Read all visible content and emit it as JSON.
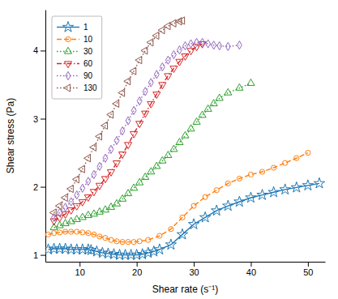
{
  "chart_data": {
    "type": "line",
    "xlabel": "Shear rate (s⁻¹)",
    "ylabel": "Shear stress (Pa)",
    "xlim": [
      4,
      53
    ],
    "ylim": [
      0.9,
      4.6
    ],
    "xticks": [
      10,
      20,
      30,
      40,
      50
    ],
    "yticks": [
      1,
      2,
      3,
      4
    ],
    "grid": false,
    "legend": "upper left",
    "series": [
      {
        "name": "1",
        "line_style": "solid",
        "marker": "star",
        "x": [
          4.5,
          5.5,
          6.5,
          7.5,
          8.5,
          9.5,
          10.5,
          11.5,
          12.0,
          13.0,
          14.0,
          15.0,
          16.0,
          17.0,
          18.0,
          19.0,
          20.0,
          21.0,
          22.0,
          23.0,
          24.0,
          26.0,
          28.0,
          30.0,
          32.0,
          34.0,
          36.0,
          38.0,
          40.0,
          42.0,
          44.0,
          46.0,
          48.0,
          50.0,
          52.0
        ],
        "values": [
          1.08,
          1.09,
          1.09,
          1.09,
          1.08,
          1.08,
          1.08,
          1.08,
          1.07,
          1.05,
          1.03,
          1.02,
          1.01,
          1.0,
          1.0,
          1.0,
          1.0,
          1.01,
          1.03,
          1.05,
          1.08,
          1.15,
          1.3,
          1.45,
          1.55,
          1.65,
          1.72,
          1.78,
          1.84,
          1.88,
          1.92,
          1.96,
          1.99,
          2.02,
          2.05
        ]
      },
      {
        "name": "10",
        "line_style": "dashed",
        "marker": "circle",
        "x": [
          4.5,
          5.5,
          6.5,
          7.5,
          8.5,
          9.5,
          10.5,
          11.5,
          12.5,
          13.5,
          14.5,
          15.5,
          16.5,
          17.5,
          18.5,
          19.5,
          20.5,
          22.0,
          24.0,
          26.0,
          28.0,
          30.0,
          32.0,
          34.0,
          36.0,
          38.0,
          40.0,
          42.0,
          44.0,
          46.0,
          48.0,
          50.0
        ],
        "values": [
          1.3,
          1.32,
          1.33,
          1.34,
          1.34,
          1.34,
          1.33,
          1.32,
          1.3,
          1.27,
          1.25,
          1.22,
          1.2,
          1.19,
          1.19,
          1.19,
          1.2,
          1.22,
          1.28,
          1.38,
          1.55,
          1.72,
          1.85,
          1.95,
          2.05,
          2.12,
          2.18,
          2.22,
          2.28,
          2.35,
          2.42,
          2.5
        ]
      },
      {
        "name": "30",
        "line_style": "dotted",
        "marker": "triangle-up",
        "x": [
          5.5,
          6.5,
          7.5,
          8.5,
          9.5,
          10.5,
          11.5,
          12.5,
          13.5,
          14.5,
          15.5,
          16.5,
          17.5,
          18.5,
          19.5,
          20.5,
          21.5,
          22.5,
          23.5,
          24.5,
          25.5,
          26.5,
          27.5,
          28.5,
          29.5,
          30.5,
          31.5,
          32.5,
          33.5,
          34.5,
          36.0,
          38.0,
          40.0
        ],
        "values": [
          1.4,
          1.43,
          1.46,
          1.49,
          1.52,
          1.55,
          1.58,
          1.6,
          1.63,
          1.66,
          1.7,
          1.75,
          1.82,
          1.9,
          1.98,
          2.06,
          2.14,
          2.22,
          2.3,
          2.38,
          2.46,
          2.55,
          2.65,
          2.75,
          2.85,
          2.95,
          3.05,
          3.14,
          3.22,
          3.3,
          3.38,
          3.45,
          3.52
        ]
      },
      {
        "name": "60",
        "line_style": "dashdot",
        "marker": "triangle-down",
        "x": [
          5.5,
          6.5,
          7.5,
          8.5,
          9.5,
          10.5,
          11.5,
          12.5,
          13.5,
          14.5,
          15.5,
          16.5,
          17.5,
          18.5,
          19.5,
          20.5,
          21.5,
          22.5,
          23.5,
          24.5,
          25.5,
          26.5,
          27.5,
          28.5,
          29.5,
          30.5,
          31.5
        ],
        "values": [
          1.5,
          1.55,
          1.6,
          1.66,
          1.72,
          1.78,
          1.85,
          1.93,
          2.02,
          2.12,
          2.22,
          2.35,
          2.48,
          2.62,
          2.78,
          2.93,
          3.08,
          3.22,
          3.36,
          3.5,
          3.63,
          3.74,
          3.84,
          3.92,
          4.0,
          4.06,
          4.1
        ]
      },
      {
        "name": "90",
        "line_style": "dotted",
        "marker": "diamond",
        "x": [
          5.5,
          6.5,
          7.5,
          8.5,
          9.5,
          10.5,
          11.5,
          12.5,
          13.5,
          14.5,
          15.5,
          16.5,
          17.5,
          18.5,
          19.5,
          20.5,
          21.5,
          22.5,
          23.5,
          24.5,
          25.5,
          26.5,
          27.5,
          28.5,
          29.5,
          30.5,
          31.5,
          32.5,
          33.5,
          34.5,
          36.0,
          38.0
        ],
        "values": [
          1.55,
          1.62,
          1.7,
          1.78,
          1.88,
          1.98,
          2.08,
          2.18,
          2.3,
          2.42,
          2.55,
          2.68,
          2.82,
          2.97,
          3.12,
          3.26,
          3.4,
          3.53,
          3.65,
          3.76,
          3.86,
          3.94,
          4.01,
          4.07,
          4.1,
          4.12,
          4.12,
          4.1,
          4.08,
          4.07,
          4.06,
          4.08
        ]
      },
      {
        "name": "130",
        "line_style": "dotted",
        "marker": "triangle-left",
        "x": [
          5.5,
          6.5,
          7.5,
          8.5,
          9.5,
          10.5,
          11.5,
          12.5,
          13.5,
          14.5,
          15.5,
          16.5,
          17.5,
          18.5,
          19.5,
          20.5,
          21.5,
          22.5,
          23.5,
          24.5,
          25.5,
          26.5,
          27.5,
          28.0
        ],
        "values": [
          1.62,
          1.72,
          1.84,
          1.97,
          2.11,
          2.26,
          2.42,
          2.58,
          2.74,
          2.9,
          3.06,
          3.22,
          3.38,
          3.55,
          3.7,
          3.86,
          4.0,
          4.12,
          4.22,
          4.3,
          4.36,
          4.4,
          4.43,
          4.44
        ]
      }
    ]
  }
}
